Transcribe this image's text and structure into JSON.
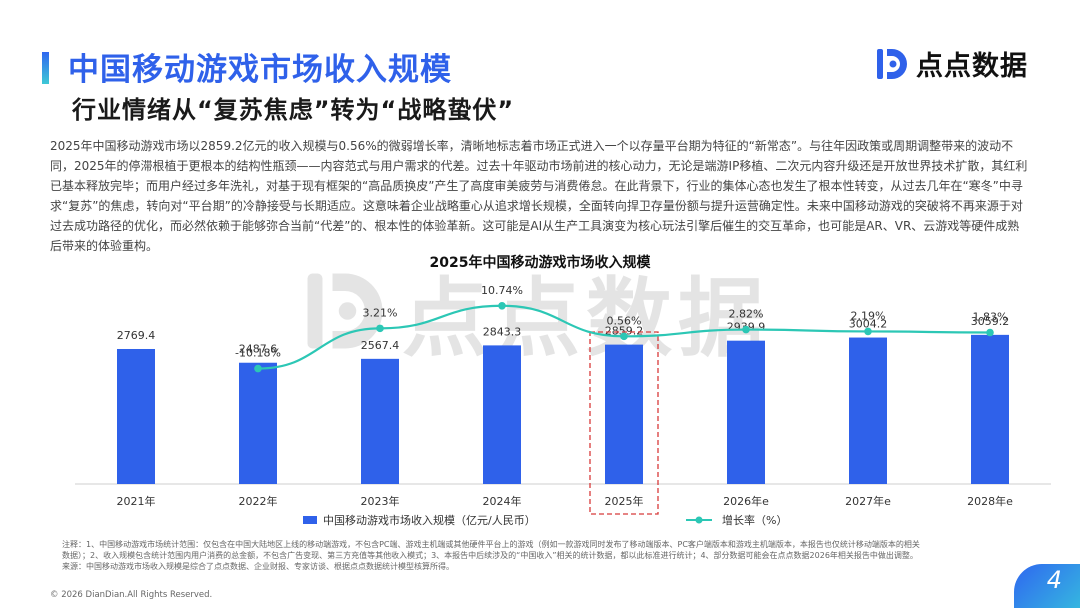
{
  "header": {
    "title": "中国移动游戏市场收入规模",
    "subtitle": "行业情绪从“复苏焦虑”转为“战略蛰伏”"
  },
  "logo": {
    "text": "点点数据",
    "icon": "diandian-logo-icon",
    "color": "#2f61ea"
  },
  "watermark": {
    "text": "点点数据"
  },
  "body_text": "2025年中国移动游戏市场以2859.2亿元的收入规模与0.56%的微弱增长率，清晰地标志着市场正式进入一个以存量平台期为特征的“新常态”。与往年因政策或周期调整带来的波动不同，2025年的停滞根植于更根本的结构性瓶颈——内容范式与用户需求的代差。过去十年驱动市场前进的核心动力，无论是端游IP移植、二次元内容升级还是开放世界技术扩散，其红利已基本释放完毕；而用户经过多年洗礼，对基于现有框架的“高品质换皮”产生了高度审美疲劳与消费倦怠。在此背景下，行业的集体心态也发生了根本性转变，从过去几年在“寒冬”中寻求“复苏”的焦虑，转向对“平台期”的冷静接受与长期适应。这意味着企业战略重心从追求增长规模，全面转向捍卫存量份额与提升运营确定性。未来中国移动游戏的突破将不再来源于对过去成功路径的优化，而必然依赖于能够弥合当前“代差”的、根本性的体验革新。这可能是AI从生产工具演变为核心玩法引擎后催生的交互革命，也可能是AR、VR、云游戏等硬件成熟后带来的体验重构。",
  "chart_data": {
    "type": "bar+line",
    "title": "2025年中国移动游戏市场收入规模",
    "categories": [
      "2021年",
      "2022年",
      "2023年",
      "2024年",
      "2025年",
      "2026年e",
      "2027年e",
      "2028年e"
    ],
    "series": [
      {
        "name": "中国移动游戏市场收入规模（亿元/人民币）",
        "type": "bar",
        "axis": "left",
        "values": [
          2769.4,
          2487.6,
          2567.4,
          2843.3,
          2859.2,
          2939.9,
          3004.2,
          3059.2
        ],
        "labels": [
          "2769.4",
          "2487.6",
          "2567.4",
          "2843.3",
          "2859.2",
          "2939.9",
          "3004.2",
          "3059.2"
        ]
      },
      {
        "name": "增长率（%）",
        "type": "line",
        "axis": "right",
        "values": [
          null,
          -10.18,
          3.21,
          10.74,
          0.56,
          2.82,
          2.19,
          1.83
        ],
        "labels": [
          "",
          "-10.18%",
          "3.21%",
          "10.74%",
          "0.56%",
          "2.82%",
          "2.19%",
          "1.83%"
        ]
      }
    ],
    "highlight_category": "2025年",
    "ylim_left": [
      0,
      4000
    ],
    "ylim_right": [
      -25,
      15
    ],
    "grid": false,
    "legend": "bottom",
    "colors": {
      "bar": "#2f61ea",
      "line": "#2cc7b5",
      "highlight": "#d83a3a"
    }
  },
  "notes": {
    "line1": "注释：1、中国移动游戏市场统计范围：仅包含在中国大陆地区上线的移动端游戏，不包含PC端、游戏主机端或其他硬件平台上的游戏（例如一款游戏同时发布了移动端版本、PC客户端版本和游戏主机端版本，本报告也仅统计移动端版本的相关",
    "line2": "数据）；2、收入规模包含统计范围内用户消费的总金额，不包含广告变现、第三方充值等其他收入模式；3、本报告中后续涉及的“中国收入”相关的统计数据，都以此标准进行统计；4、部分数据可能会在点点数据2026年相关报告中做出调整。",
    "line3": "来源：中国移动游戏市场收入规模是综合了点点数据、企业财报、专家访谈、根据点点数据统计模型核算所得。"
  },
  "footer": {
    "copyright": "© 2026 DianDian.All Rights Reserved.",
    "page_number": "4"
  }
}
